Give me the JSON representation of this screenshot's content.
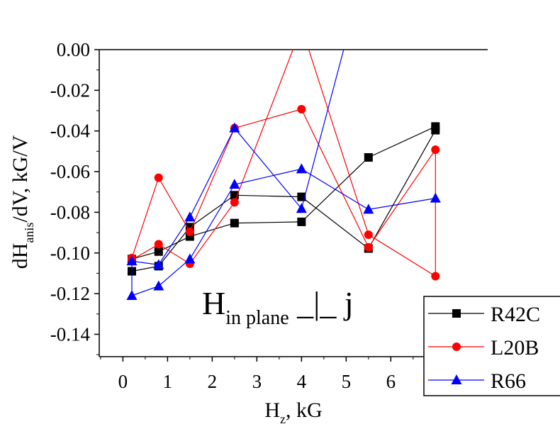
{
  "chart_data": {
    "type": "line",
    "title": "",
    "xlabel": {
      "main": "H",
      "sub": "z",
      "rest": ", kG"
    },
    "ylabel": {
      "main": "dH",
      "sub": "anis",
      "rest": "/dV, kG/V"
    },
    "annotation": {
      "main": "H",
      "sub": "in plane",
      "rest": " _|_ j"
    },
    "xlim": [
      -0.53,
      8.17
    ],
    "ylim": [
      -0.151,
      0.0
    ],
    "xticks": [
      0,
      1,
      2,
      3,
      4,
      5,
      6
    ],
    "xtick_labels": [
      "0",
      "1",
      "2",
      "3",
      "4",
      "5",
      "6"
    ],
    "yticks": [
      0.0,
      -0.02,
      -0.04,
      -0.06,
      -0.08,
      -0.1,
      -0.12,
      -0.14
    ],
    "ytick_labels": [
      "0.00",
      "-0.02",
      "-0.04",
      "-0.06",
      "-0.08",
      "-0.10",
      "-0.12",
      "-0.14"
    ],
    "grid": false,
    "legend_position": "bottom-right",
    "series": [
      {
        "name": "R42C",
        "color": "#000000",
        "marker": "square",
        "x": [
          0.2,
          0.8,
          1.5,
          2.5,
          4,
          5.5,
          7,
          7,
          5.5,
          4,
          2.5,
          1.5,
          0.8,
          0.2
        ],
        "y": [
          -0.109,
          -0.1065,
          -0.0873,
          -0.0716,
          -0.0724,
          -0.0978,
          -0.0396,
          -0.0378,
          -0.053,
          -0.0847,
          -0.0853,
          -0.0919,
          -0.0993,
          -0.103
        ]
      },
      {
        "name": "L20B",
        "color": "#ff0000",
        "marker": "circle",
        "x": [
          0.2,
          0.8,
          1.5,
          2.5,
          4,
          5.5,
          7,
          7,
          5.5,
          4,
          2.5,
          1.5,
          0.8,
          0.2
        ],
        "y": [
          -0.1025,
          -0.063,
          -0.0896,
          -0.0386,
          -0.0293,
          -0.0972,
          -0.0492,
          -0.1114,
          -0.091,
          0.011,
          -0.0751,
          -0.1053,
          -0.0957,
          -0.1034
        ]
      },
      {
        "name": "R66",
        "color": "#0000ff",
        "marker": "triangle",
        "x": [
          5.5,
          4,
          2.5,
          1.5,
          0.8,
          0.2,
          0.2,
          0.8,
          1.5,
          2.5,
          4,
          5.5,
          7
        ],
        "y": [
          0.046,
          -0.0782,
          -0.0386,
          -0.0824,
          -0.1058,
          -0.104,
          -0.121,
          -0.1163,
          -0.103,
          -0.0663,
          -0.0587,
          -0.0786,
          -0.0731
        ]
      }
    ]
  }
}
